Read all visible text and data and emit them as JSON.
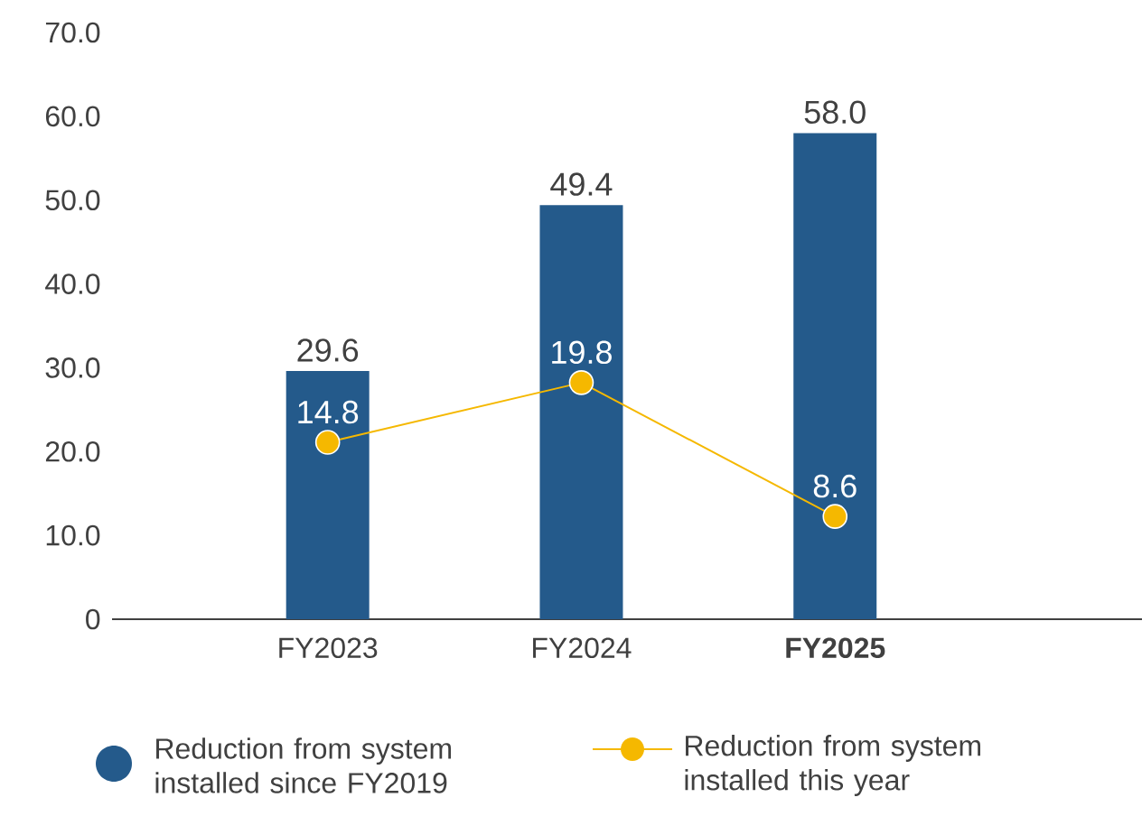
{
  "chart_data": {
    "type": "bar",
    "categories": [
      "FY2023",
      "FY2024",
      "**FY2025**"
    ],
    "series": [
      {
        "name": "Reduction from system installed since FY2019",
        "color": "#245a8b",
        "values": [
          29.6,
          49.4,
          58.0
        ],
        "value_labels": [
          "29.6",
          "49.4",
          "58.0"
        ]
      },
      {
        "name": "Reduction from system installed this year",
        "color": "#f5b800",
        "values": [
          14.8,
          19.8,
          8.6
        ],
        "value_labels": [
          "14.8",
          "19.8",
          "8.6"
        ],
        "type": "line",
        "axis": "y2",
        "marker": "circle"
      }
    ],
    "ylim": [
      0,
      70
    ],
    "yticks": [
      0,
      {
        "value": 10,
        "label": "10.0"
      },
      {
        "value": 20,
        "label": "20.0"
      },
      {
        "value": 30,
        "label": "30.0"
      },
      {
        "value": 40,
        "label": "40.0"
      },
      {
        "value": 50,
        "label": "50.0"
      },
      {
        "value": 60,
        "label": "60.0"
      },
      {
        "value": 70,
        "label": "70.0"
      }
    ],
    "legend": "bottom",
    "grid": false
  }
}
